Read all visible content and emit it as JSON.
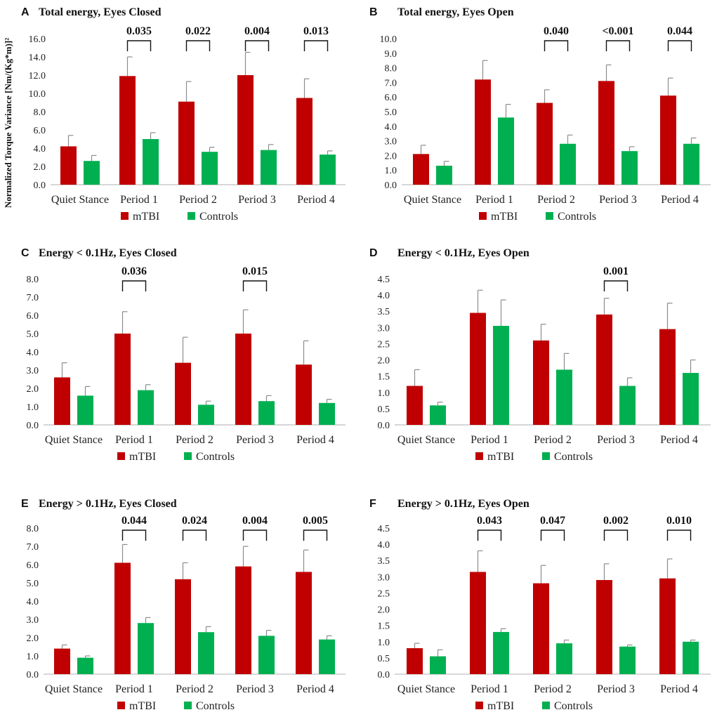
{
  "figure": {
    "y_axis_label": "Normalized Torque Variance [Nm/(Kg*m)]²"
  },
  "legend": {
    "mtbi": "mTBI",
    "controls": "Controls"
  },
  "colors": {
    "mtbi": "#c00000",
    "controls": "#00b050",
    "error_bar": "#8c8c8c",
    "axis": "#bfbfbf"
  },
  "chart_data": [
    {
      "type": "bar",
      "letter": "A",
      "title": "Total energy, Eyes Closed",
      "categories": [
        "Quiet Stance",
        "Period 1",
        "Period 2",
        "Period 3",
        "Period 4"
      ],
      "ylim": [
        0,
        16
      ],
      "ytick_step": 2,
      "yticks": [
        "0.0",
        "2.0",
        "4.0",
        "6.0",
        "8.0",
        "10.0",
        "12.0",
        "14.0",
        "16.0"
      ],
      "series": [
        {
          "name": "mTBI",
          "values": [
            4.2,
            11.9,
            9.1,
            12.0,
            9.5
          ],
          "errors": [
            1.2,
            2.1,
            2.2,
            2.5,
            2.1
          ]
        },
        {
          "name": "Controls",
          "values": [
            2.6,
            5.0,
            3.6,
            3.8,
            3.3
          ],
          "errors": [
            0.6,
            0.7,
            0.5,
            0.6,
            0.4
          ]
        }
      ],
      "significance": [
        {
          "category": 1,
          "label": "0.035"
        },
        {
          "category": 2,
          "label": "0.022"
        },
        {
          "category": 3,
          "label": "0.004"
        },
        {
          "category": 4,
          "label": "0.013"
        }
      ]
    },
    {
      "type": "bar",
      "letter": "B",
      "title": "Total energy, Eyes Open",
      "categories": [
        "Quiet Stance",
        "Period 1",
        "Period 2",
        "Period 3",
        "Period 4"
      ],
      "ylim": [
        0,
        10
      ],
      "ytick_step": 1,
      "yticks": [
        "0.0",
        "1.0",
        "2.0",
        "3.0",
        "4.0",
        "5.0",
        "6.0",
        "7.0",
        "8.0",
        "9.0",
        "10.0"
      ],
      "series": [
        {
          "name": "mTBI",
          "values": [
            2.1,
            7.2,
            5.6,
            7.1,
            6.1
          ],
          "errors": [
            0.6,
            1.3,
            0.9,
            1.1,
            1.2
          ]
        },
        {
          "name": "Controls",
          "values": [
            1.3,
            4.6,
            2.8,
            2.3,
            2.8
          ],
          "errors": [
            0.3,
            0.9,
            0.6,
            0.3,
            0.4
          ]
        }
      ],
      "significance": [
        {
          "category": 2,
          "label": "0.040"
        },
        {
          "category": 3,
          "label": "<0.001"
        },
        {
          "category": 4,
          "label": "0.044"
        }
      ]
    },
    {
      "type": "bar",
      "letter": "C",
      "title": "Energy < 0.1Hz, Eyes Closed",
      "categories": [
        "Quiet Stance",
        "Period 1",
        "Period 2",
        "Period 3",
        "Period 4"
      ],
      "ylim": [
        0,
        8
      ],
      "ytick_step": 1,
      "yticks": [
        "0.0",
        "1.0",
        "2.0",
        "3.0",
        "4.0",
        "5.0",
        "6.0",
        "7.0",
        "8.0"
      ],
      "series": [
        {
          "name": "mTBI",
          "values": [
            2.6,
            5.0,
            3.4,
            5.0,
            3.3
          ],
          "errors": [
            0.8,
            1.2,
            1.4,
            1.3,
            1.3
          ]
        },
        {
          "name": "Controls",
          "values": [
            1.6,
            1.9,
            1.1,
            1.3,
            1.2
          ],
          "errors": [
            0.5,
            0.3,
            0.2,
            0.3,
            0.2
          ]
        }
      ],
      "significance": [
        {
          "category": 1,
          "label": "0.036"
        },
        {
          "category": 3,
          "label": "0.015"
        }
      ]
    },
    {
      "type": "bar",
      "letter": "D",
      "title": "Energy < 0.1Hz, Eyes Open",
      "categories": [
        "Quiet Stance",
        "Period 1",
        "Period 2",
        "Period 3",
        "Period 4"
      ],
      "ylim": [
        0,
        4.5
      ],
      "ytick_step": 0.5,
      "yticks": [
        "0.0",
        "0.5",
        "1.0",
        "1.5",
        "2.0",
        "2.5",
        "3.0",
        "3.5",
        "4.0",
        "4.5"
      ],
      "series": [
        {
          "name": "mTBI",
          "values": [
            1.2,
            3.45,
            2.6,
            3.4,
            2.95
          ],
          "errors": [
            0.5,
            0.7,
            0.5,
            0.5,
            0.8
          ]
        },
        {
          "name": "Controls",
          "values": [
            0.6,
            3.05,
            1.7,
            1.2,
            1.6
          ],
          "errors": [
            0.1,
            0.8,
            0.5,
            0.25,
            0.4
          ]
        }
      ],
      "significance": [
        {
          "category": 3,
          "label": "0.001"
        }
      ]
    },
    {
      "type": "bar",
      "letter": "E",
      "title": "Energy > 0.1Hz, Eyes Closed",
      "categories": [
        "Quiet Stance",
        "Period 1",
        "Period 2",
        "Period 3",
        "Period 4"
      ],
      "ylim": [
        0,
        8
      ],
      "ytick_step": 1,
      "yticks": [
        "0.0",
        "1.0",
        "2.0",
        "3.0",
        "4.0",
        "5.0",
        "6.0",
        "7.0",
        "8.0"
      ],
      "series": [
        {
          "name": "mTBI",
          "values": [
            1.4,
            6.1,
            5.2,
            5.9,
            5.6
          ],
          "errors": [
            0.2,
            1.0,
            0.9,
            1.1,
            1.2
          ]
        },
        {
          "name": "Controls",
          "values": [
            0.9,
            2.8,
            2.3,
            2.1,
            1.9
          ],
          "errors": [
            0.1,
            0.3,
            0.3,
            0.3,
            0.2
          ]
        }
      ],
      "significance": [
        {
          "category": 1,
          "label": "0.044"
        },
        {
          "category": 2,
          "label": "0.024"
        },
        {
          "category": 3,
          "label": "0.004"
        },
        {
          "category": 4,
          "label": "0.005"
        }
      ]
    },
    {
      "type": "bar",
      "letter": "F",
      "title": "Energy > 0.1Hz, Eyes Open",
      "categories": [
        "Quiet Stance",
        "Period 1",
        "Period 2",
        "Period 3",
        "Period 4"
      ],
      "ylim": [
        0,
        4.5
      ],
      "ytick_step": 0.5,
      "yticks": [
        "0.0",
        "0.5",
        "1.0",
        "1.5",
        "2.0",
        "2.5",
        "3.0",
        "3.5",
        "4.0",
        "4.5"
      ],
      "series": [
        {
          "name": "mTBI",
          "values": [
            0.8,
            3.15,
            2.8,
            2.9,
            2.95
          ],
          "errors": [
            0.15,
            0.65,
            0.55,
            0.5,
            0.6
          ]
        },
        {
          "name": "Controls",
          "values": [
            0.55,
            1.3,
            0.95,
            0.85,
            1.0
          ],
          "errors": [
            0.2,
            0.1,
            0.1,
            0.05,
            0.05
          ]
        }
      ],
      "significance": [
        {
          "category": 1,
          "label": "0.043"
        },
        {
          "category": 2,
          "label": "0.047"
        },
        {
          "category": 3,
          "label": "0.002"
        },
        {
          "category": 4,
          "label": "0.010"
        }
      ]
    }
  ]
}
